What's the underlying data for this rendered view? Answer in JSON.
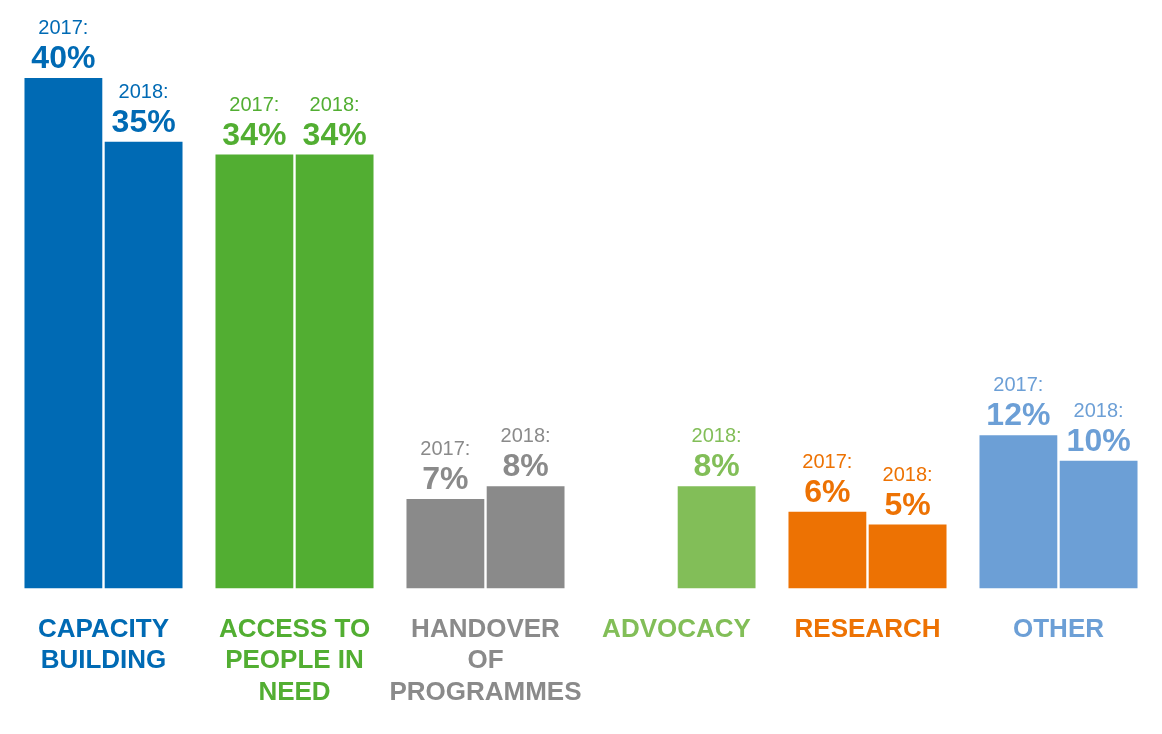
{
  "chart_data": {
    "type": "bar",
    "categories": [
      "CAPACITY BUILDING",
      "ACCESS TO PEOPLE IN NEED",
      "HANDOVER OF PROGRAMMES",
      "ADVOCACY",
      "RESEARCH",
      "OTHER"
    ],
    "legend": false,
    "grid": false,
    "series": [
      {
        "name": "2017:",
        "colors": [
          "#006ab4",
          "#52ae32",
          "#8a8a8a",
          "#82be58",
          "#ed7203",
          "#6c9fd6"
        ],
        "values": [
          40,
          34,
          7,
          null,
          6,
          12
        ],
        "value_labels": [
          "40%",
          "34%",
          "7%",
          null,
          "6%",
          "12%"
        ]
      },
      {
        "name": "2018:",
        "colors": [
          "#006ab4",
          "#52ae32",
          "#8a8a8a",
          "#82be58",
          "#ed7203",
          "#6c9fd6"
        ],
        "values": [
          35,
          34,
          8,
          8,
          5,
          10
        ],
        "value_labels": [
          "35%",
          "34%",
          "8%",
          "8%",
          "5%",
          "10%"
        ]
      }
    ]
  }
}
